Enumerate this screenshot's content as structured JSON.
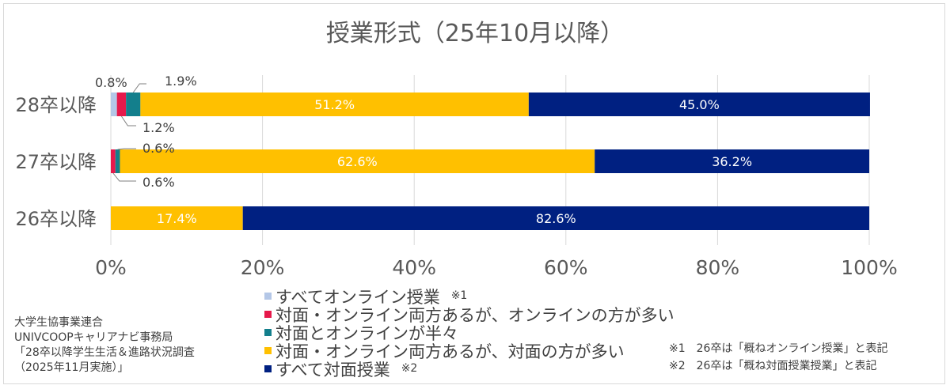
{
  "chart_data": {
    "type": "bar",
    "orientation": "horizontal-stacked-100",
    "title": "授業形式（25年10月以降）",
    "categories": [
      "28卒以降",
      "27卒以降",
      "26卒以降"
    ],
    "series": [
      {
        "name": "すべてオンライン授業",
        "note_mark": "※1",
        "color": "#b4c7e7",
        "values": [
          0.8,
          0,
          0
        ],
        "labels": [
          "0.8%",
          "",
          ""
        ]
      },
      {
        "name": "対面・オンライン両方あるが、オンラインの方が多い",
        "note_mark": "",
        "color": "#e6194b",
        "values": [
          1.2,
          0.6,
          0
        ],
        "labels": [
          "1.2%",
          "0.6%",
          ""
        ]
      },
      {
        "name": "対面とオンラインが半々",
        "note_mark": "",
        "color": "#137f8c",
        "values": [
          1.9,
          0.6,
          0
        ],
        "labels": [
          "1.9%",
          "0.6%",
          ""
        ]
      },
      {
        "name": "対面・オンライン両方あるが、対面の方が多い",
        "note_mark": "",
        "color": "#ffc000",
        "values": [
          51.2,
          62.6,
          17.4
        ],
        "labels": [
          "51.2%",
          "62.6%",
          "17.4%"
        ]
      },
      {
        "name": "すべて対面授業",
        "note_mark": "※2",
        "color": "#002081",
        "values": [
          45.0,
          36.2,
          82.6
        ],
        "labels": [
          "45.0%",
          "36.2%",
          "82.6%"
        ]
      }
    ],
    "xlim": [
      0,
      100
    ],
    "xticks": [
      "0%",
      "20%",
      "40%",
      "60%",
      "80%",
      "100%"
    ],
    "grid": true,
    "legend_position": "bottom-center"
  },
  "notes": [
    "※1　26卒は「概ねオンライン授業」と表記",
    "※2　26卒は「概ね対面授業授業」と表記"
  ],
  "source": [
    "大学生協事業連合",
    "UNIVCOOPキャリアナビ事務局",
    "「28卒以降学生生活＆進路状況調査",
    "（2025年11月実施）」"
  ]
}
